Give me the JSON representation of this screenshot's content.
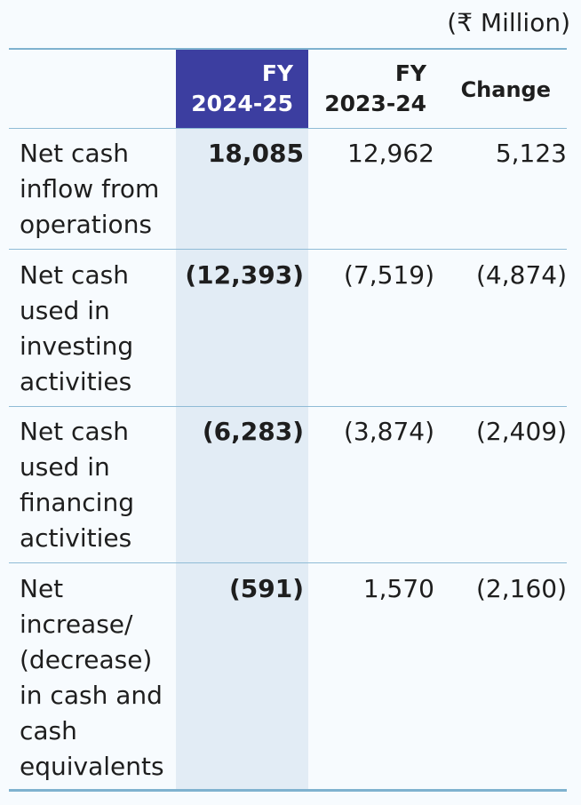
{
  "unit": "(₹ Million)",
  "headers": {
    "current_line1": "FY",
    "current_line2": "2024-25",
    "previous_line1": "FY",
    "previous_line2": "2023-24",
    "change": "Change"
  },
  "rows": [
    {
      "label": "Net cash inflow from operations",
      "current": "18,085",
      "previous": "12,962",
      "change": "5,123"
    },
    {
      "label": "Net cash used in investing activities",
      "current": "(12,393)",
      "previous": "(7,519)",
      "change": "(4,874)"
    },
    {
      "label": "Net cash used in financing activities",
      "current": "(6,283)",
      "previous": "(3,874)",
      "change": "(2,409)"
    },
    {
      "label": "Net increase/ (decrease) in cash and cash equivalents",
      "current": "(591)",
      "previous": "1,570",
      "change": "(2,160)"
    }
  ],
  "colors": {
    "header_highlight": "#3c3ea0",
    "column_highlight": "#e2ecf5",
    "rule": "#7fb2cf"
  }
}
